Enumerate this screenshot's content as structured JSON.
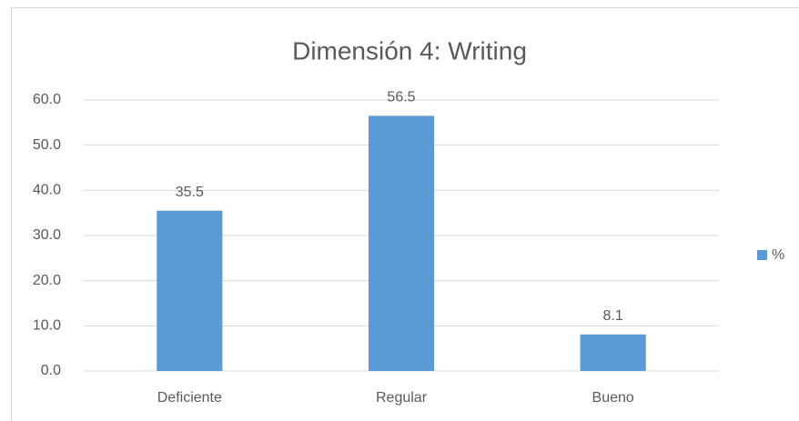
{
  "chart_data": {
    "type": "bar",
    "title": "Dimensión 4: Writing",
    "categories": [
      "Deficiente",
      "Regular",
      "Bueno"
    ],
    "series": [
      {
        "name": "%",
        "color": "#5b9bd5",
        "values": [
          35.5,
          56.5,
          8.1
        ]
      }
    ],
    "ylim": [
      0,
      60
    ],
    "yticks": [
      {
        "value": 0,
        "label": "0.0"
      },
      {
        "value": 10,
        "label": "10.0"
      },
      {
        "value": 20,
        "label": "20.0"
      },
      {
        "value": 30,
        "label": "30.0"
      },
      {
        "value": 40,
        "label": "40.0"
      },
      {
        "value": 50,
        "label": "50.0"
      },
      {
        "value": 60,
        "label": "60.0"
      }
    ],
    "grid": true,
    "legend": "right"
  }
}
